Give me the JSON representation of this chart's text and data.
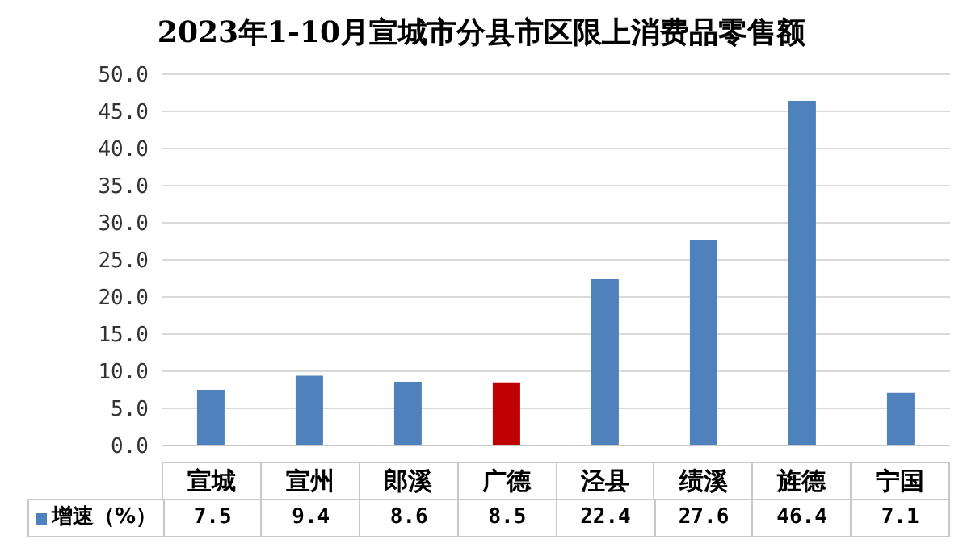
{
  "chart_data": {
    "type": "bar",
    "title": "2023年1-10月宣城市分县市区限上消费品零售额",
    "categories": [
      "宣城",
      "宣州",
      "郎溪",
      "广德",
      "泾县",
      "绩溪",
      "旌德",
      "宁国"
    ],
    "series": [
      {
        "name": "增速（%）",
        "color": "#4f81bd",
        "colors": [
          "#4f81bd",
          "#4f81bd",
          "#4f81bd",
          "#c00000",
          "#4f81bd",
          "#4f81bd",
          "#4f81bd",
          "#4f81bd"
        ],
        "values": [
          7.5,
          9.4,
          8.6,
          8.5,
          22.4,
          27.6,
          46.4,
          7.1
        ]
      }
    ],
    "ylim": [
      0,
      50
    ],
    "yticks": [
      {
        "value": 0,
        "label": "0.0"
      },
      {
        "value": 5,
        "label": "5.0"
      },
      {
        "value": 10,
        "label": "10.0"
      },
      {
        "value": 15,
        "label": "15.0"
      },
      {
        "value": 20,
        "label": "20.0"
      },
      {
        "value": 25,
        "label": "25.0"
      },
      {
        "value": 30,
        "label": "30.0"
      },
      {
        "value": 35,
        "label": "35.0"
      },
      {
        "value": 40,
        "label": "40.0"
      },
      {
        "value": 45,
        "label": "45.0"
      },
      {
        "value": 50,
        "label": "50.0"
      }
    ],
    "grid": "y",
    "legend": "bottom left",
    "data_labels": true
  }
}
